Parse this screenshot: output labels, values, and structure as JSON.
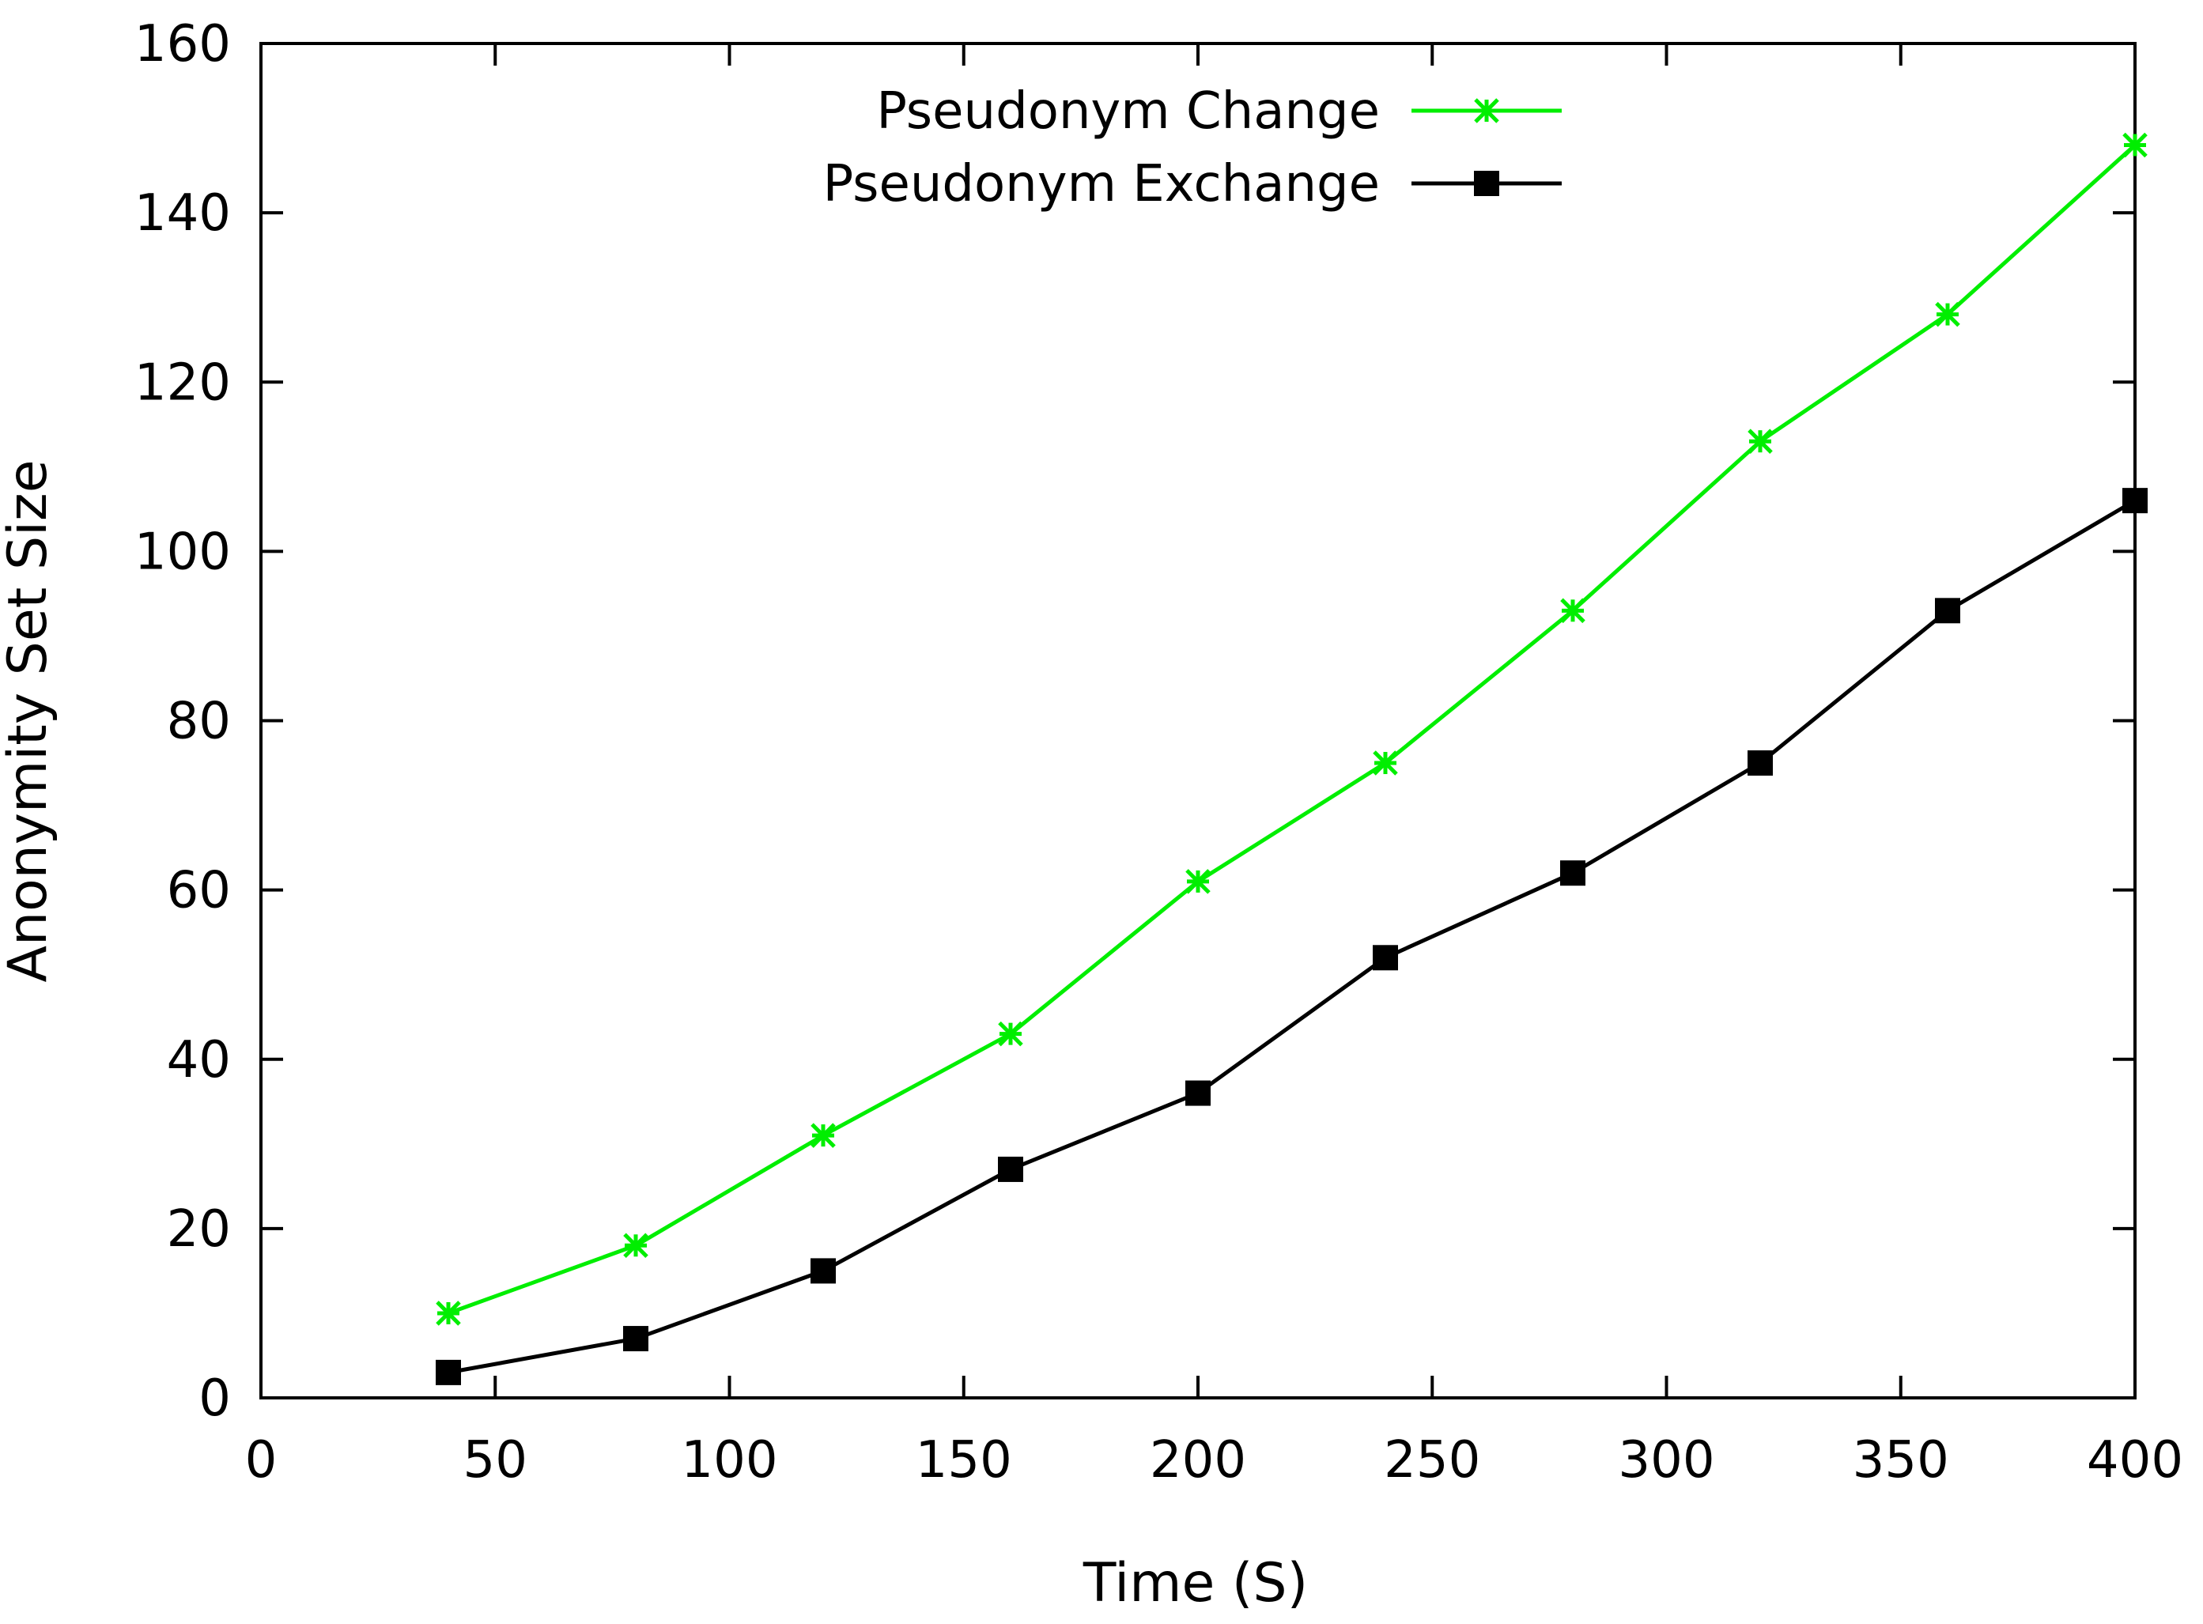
{
  "chart_data": {
    "type": "line",
    "title": "",
    "xlabel": "Time (S)",
    "ylabel": "Anonymity Set Size",
    "xlim": [
      0,
      400
    ],
    "ylim": [
      0,
      160
    ],
    "xticks": [
      0,
      50,
      100,
      150,
      200,
      250,
      300,
      350,
      400
    ],
    "yticks": [
      0,
      20,
      40,
      60,
      80,
      100,
      120,
      140,
      160
    ],
    "x": [
      40,
      80,
      120,
      160,
      200,
      240,
      280,
      320,
      360,
      400
    ],
    "series": [
      {
        "name": "Pseudonym Change",
        "color": "#00ee00",
        "marker": "asterisk",
        "values": [
          10,
          18,
          31,
          43,
          61,
          75,
          93,
          113,
          128,
          148
        ]
      },
      {
        "name": "Pseudonym Exchange",
        "color": "#000000",
        "marker": "square",
        "values": [
          3,
          7,
          15,
          27,
          36,
          52,
          62,
          75,
          93,
          106
        ]
      }
    ],
    "legend": {
      "position": "top-center"
    },
    "grid": false
  }
}
